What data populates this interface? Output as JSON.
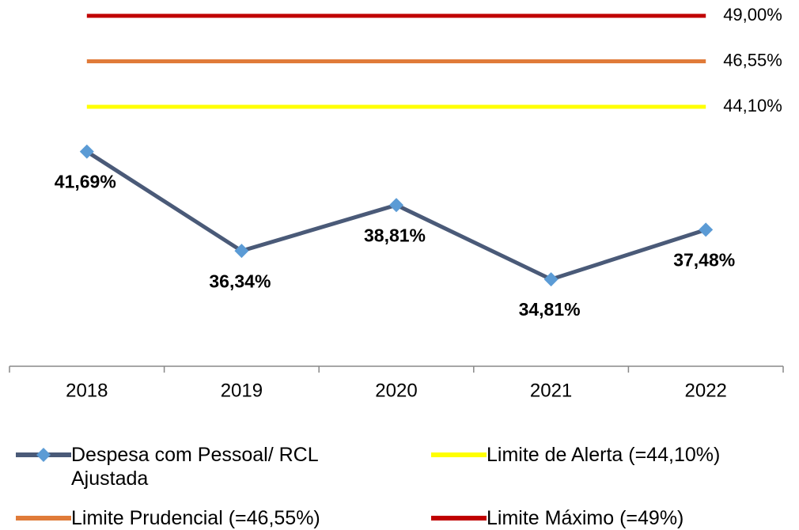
{
  "chart_data": {
    "type": "line",
    "categories": [
      "2018",
      "2019",
      "2020",
      "2021",
      "2022"
    ],
    "ylim": [
      30,
      49
    ],
    "legend": "bottom",
    "series": [
      {
        "name": "Despesa com Pessoal/ RCL Ajustada",
        "color": "#4a5a78",
        "marker_color": "#5b9bd5",
        "values": [
          41.69,
          36.34,
          38.81,
          34.81,
          37.48
        ],
        "value_labels": [
          "41,69%",
          "36,34%",
          "38,81%",
          "34,81%",
          "37,48%"
        ]
      },
      {
        "name": "Limite de Alerta (=44,10%)",
        "color": "#ffff00",
        "values": [
          44.1,
          44.1,
          44.1,
          44.1,
          44.1
        ],
        "value_labels": [
          null,
          null,
          null,
          null,
          "44,10%"
        ]
      },
      {
        "name": "Limite Prudencial (=46,55%)",
        "color": "#e07b39",
        "values": [
          46.55,
          46.55,
          46.55,
          46.55,
          46.55
        ],
        "value_labels": [
          null,
          null,
          null,
          null,
          "46,55%"
        ]
      },
      {
        "name": "Limite Máximo (=49%)",
        "color": "#c00000",
        "values": [
          49,
          49,
          49,
          49,
          49
        ],
        "value_labels": [
          null,
          null,
          null,
          null,
          "49,00%"
        ]
      }
    ]
  }
}
